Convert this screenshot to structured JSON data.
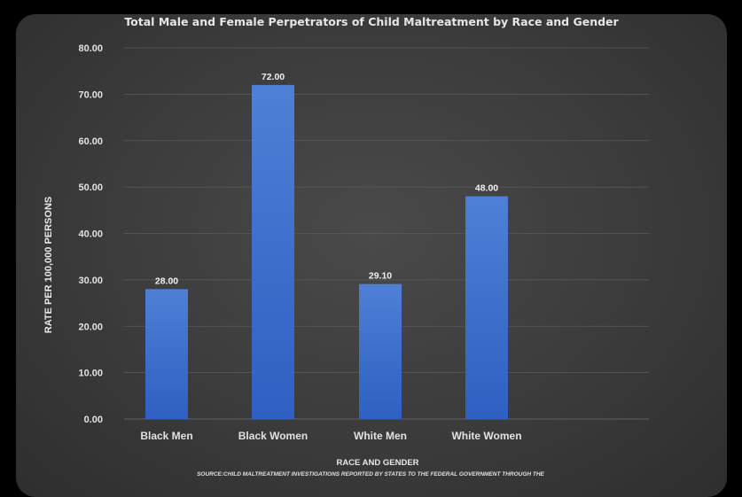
{
  "chart_data": {
    "type": "bar",
    "title": "Total Male and Female Perpetrators of Child Maltreatment by Race and Gender",
    "xlabel": "RACE AND GENDER",
    "ylabel": "RATE PER 100,000 PERSONS",
    "categories": [
      "Black Men",
      "Black Women",
      "White Men",
      "White Women"
    ],
    "values": [
      28.0,
      72.0,
      29.1,
      48.0
    ],
    "value_labels": [
      "28.00",
      "72.00",
      "29.10",
      "48.00"
    ],
    "ylim": [
      0,
      80
    ],
    "yticks": [
      0,
      10,
      20,
      30,
      40,
      50,
      60,
      70,
      80
    ],
    "ytick_labels": [
      "0.00",
      "10.00",
      "20.00",
      "30.00",
      "40.00",
      "50.00",
      "60.00",
      "70.00",
      "80.00"
    ],
    "grid": true,
    "legend": "none",
    "source": "SOURCE:CHILD MALTREATMENT INVESTIGATIONS REPORTED BY STATES TO THE FEDERAL GOVERNMENT THROUGH THE",
    "colors": {
      "bar_top": "#4f7fd6",
      "bar_bottom": "#2f5fc2",
      "grid": "#5a5a5a",
      "text": "#e2e2e2"
    }
  }
}
